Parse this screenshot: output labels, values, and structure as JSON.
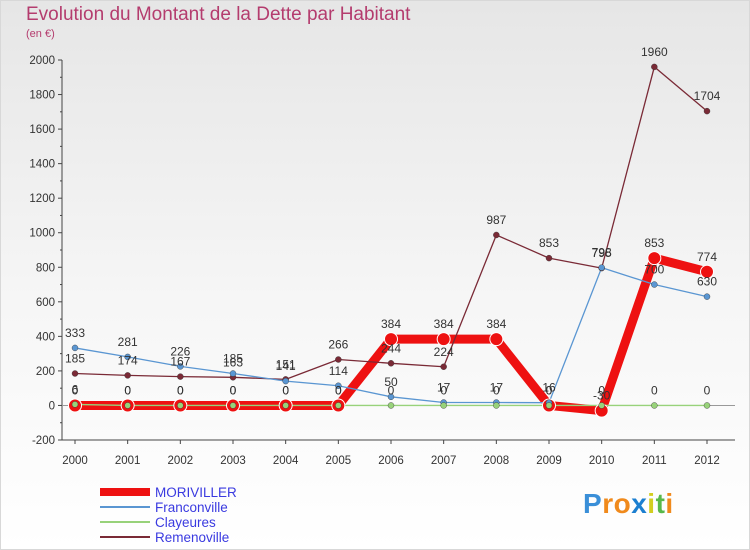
{
  "chart_data": {
    "type": "line",
    "title": "Evolution du Montant de la Dette par Habitant",
    "subtitle": "(en €)",
    "x": [
      "2000",
      "2001",
      "2002",
      "2003",
      "2004",
      "2005",
      "2006",
      "2007",
      "2008",
      "2009",
      "2010",
      "2011",
      "2012"
    ],
    "ylim": [
      -200,
      2000
    ],
    "yticks": [
      -200,
      0,
      200,
      400,
      600,
      800,
      1000,
      1200,
      1400,
      1600,
      1800,
      2000
    ],
    "grid": false,
    "legend_position": "bottom-left",
    "series": [
      {
        "name": "MORIVILLER",
        "color": "#ee1111",
        "emphasis": true,
        "values": [
          0,
          0,
          0,
          0,
          0,
          0,
          384,
          384,
          384,
          0,
          -30,
          853,
          774
        ],
        "labels": [
          "0",
          "0",
          "0",
          "0",
          "0",
          "0",
          "384",
          "384",
          "384",
          "0",
          "-30",
          "853",
          "774"
        ]
      },
      {
        "name": "Franconville",
        "color": "#5a96d2",
        "emphasis": false,
        "values": [
          333,
          281,
          226,
          185,
          141,
          114,
          50,
          17,
          17,
          16,
          798,
          700,
          630
        ],
        "labels": [
          "333",
          "281",
          "226",
          "185",
          "141",
          "114",
          "50",
          "17",
          "17",
          "16",
          "798",
          "700",
          "630"
        ]
      },
      {
        "name": "Clayeures",
        "color": "#98d27a",
        "emphasis": false,
        "values": [
          6,
          0,
          0,
          0,
          0,
          0,
          0,
          0,
          0,
          0,
          0,
          0,
          0
        ],
        "labels": [
          "6",
          "0",
          "0",
          "0",
          "0",
          "0",
          "0",
          "0",
          "0",
          "0",
          "0",
          "0",
          "0"
        ]
      },
      {
        "name": "Remenoville",
        "color": "#7a2a36",
        "emphasis": false,
        "values": [
          185,
          174,
          167,
          163,
          151,
          266,
          244,
          224,
          987,
          853,
          795,
          1960,
          1704
        ],
        "labels": [
          "185",
          "174",
          "167",
          "163",
          "151",
          "266",
          "244",
          "224",
          "987",
          "853",
          "795",
          "1960",
          "1704"
        ]
      }
    ]
  },
  "brand": {
    "letters": [
      "P",
      "r",
      "o",
      "x",
      "i",
      "t",
      "i"
    ],
    "colors": [
      "#3a8fd8",
      "#f08a1c",
      "#f08a1c",
      "#1c7fd0",
      "#d2ce20",
      "#58b84a",
      "#f08a1c"
    ]
  }
}
